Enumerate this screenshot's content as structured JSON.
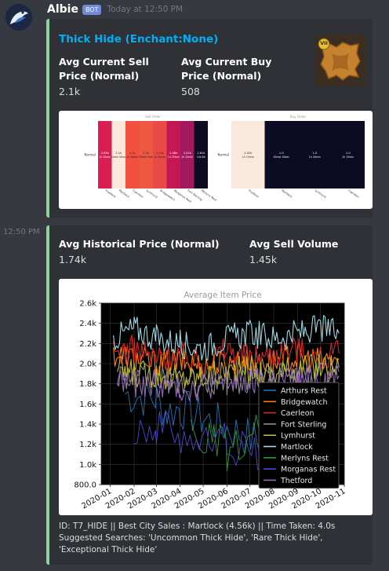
{
  "message": {
    "author": "Albie",
    "bot_badge": "BOT",
    "timestamp": "Today at 12:50 PM",
    "second_timestamp": "12:50 PM"
  },
  "embed1": {
    "title": "Thick Hide (Enchant:None)",
    "field1_name": "Avg Current Sell Price (Normal)",
    "field1_value": "2.1k",
    "field2_name": "Avg Current Buy Price (Normal)",
    "field2_value": "508",
    "thumbnail_icon": "thick-hide-item-icon",
    "thumbnail_badge": "VII",
    "heatmaps": [
      {
        "title": "Sell Order",
        "row_label": "Normal",
        "cells": [
          {
            "text": "2.09k",
            "sub": "1h 25min",
            "city": "Thetford",
            "color": "#d81e53"
          },
          {
            "text": "2.1k",
            "sub": "45min 50sec",
            "city": "Martlock",
            "color": "#fbe8dc"
          },
          {
            "text": "2.1k",
            "sub": "1h 30min",
            "city": "Caerleon",
            "color": "#f1513f"
          },
          {
            "text": "2.1k",
            "sub": "50min 5sec",
            "city": "Lymhurst",
            "color": "#ee5841"
          },
          {
            "text": "2.13k",
            "sub": "1h 55min",
            "city": "Bridgewatch",
            "color": "#ea4a45"
          },
          {
            "text": "2.06k",
            "sub": "1h 25min",
            "city": "Morganas Rest",
            "color": "#c41753"
          },
          {
            "text": "2.02k",
            "sub": "1h 25min",
            "city": "Fort Sterling",
            "color": "#a2195d"
          },
          {
            "text": "1.61k",
            "sub": "14d 8h",
            "city": "Merlyns Rest",
            "color": "#0e0c22"
          }
        ]
      },
      {
        "title": "Buy Order",
        "row_label": "Normal",
        "cells": [
          {
            "text": "2.02k",
            "sub": "1h 15min",
            "city": "Thetford",
            "color": "#fbe8dc"
          },
          {
            "text": "1.0",
            "sub": "45min 50sec",
            "city": "Martlock",
            "color": "#0b0b24"
          },
          {
            "text": "1.0",
            "sub": "1h 40min",
            "city": "Lymhurst",
            "color": "#0b0b24"
          },
          {
            "text": "1.0",
            "sub": "1h 15min",
            "city": "Caerleon",
            "color": "#0b0b24"
          }
        ]
      }
    ]
  },
  "embed2": {
    "field1_name": "Avg Historical Price (Normal)",
    "field1_value": "1.74k",
    "field2_name": "Avg Sell Volume",
    "field2_value": "1.45k",
    "footer_id": "ID: T7_HIDE || Best City Sales : Martlock (4.56k) || Time Taken: 4.0s",
    "footer_suggest": "Suggested Searches: 'Uncommon Thick Hide', 'Rare Thick Hide', 'Exceptional Thick Hide'"
  },
  "chart_data": {
    "type": "line",
    "title": "Average Item Price",
    "xlabel": "",
    "ylabel": "",
    "x_ticks": [
      "2020-01",
      "2020-02",
      "2020-03",
      "2020-04",
      "2020-05",
      "2020-06",
      "2020-07",
      "2020-08",
      "2020-09",
      "2020-10",
      "2020-11"
    ],
    "y_ticks": [
      "800.0",
      "1.0k",
      "1.2k",
      "1.4k",
      "1.6k",
      "1.8k",
      "2.0k",
      "2.2k",
      "2.4k",
      "2.6k"
    ],
    "ylim": [
      800,
      2600
    ],
    "xlim": [
      "2019-12-20",
      "2020-11-01"
    ],
    "grid": true,
    "legend_position": "center-right",
    "series": [
      {
        "name": "Arthurs Rest",
        "color": "#1f77b4",
        "x": [
          "2020-01-20",
          "2020-03-01",
          "2020-03-15",
          "2020-04-01",
          "2020-05-01",
          "2020-05-20",
          "2020-06-05",
          "2020-06-20",
          "2020-07-20",
          "2020-08-15"
        ],
        "y": [
          1700,
          1650,
          1520,
          1560,
          1450,
          1400,
          1350,
          1300,
          1200,
          1100
        ]
      },
      {
        "name": "Bridgewatch",
        "color": "#ff7f0e",
        "x": [
          "2020-01-05",
          "2020-02-01",
          "2020-03-01",
          "2020-04-01",
          "2020-05-01",
          "2020-06-01",
          "2020-07-01",
          "2020-08-01",
          "2020-09-01",
          "2020-10-01",
          "2020-10-25"
        ],
        "y": [
          2100,
          2050,
          2000,
          2020,
          1980,
          2000,
          2050,
          2020,
          2060,
          2030,
          2050
        ]
      },
      {
        "name": "Caerleon",
        "color": "#d62728",
        "x": [
          "2020-01-05",
          "2020-02-01",
          "2020-03-01",
          "2020-04-01",
          "2020-05-01",
          "2020-06-01",
          "2020-07-01",
          "2020-08-01",
          "2020-09-01",
          "2020-10-01",
          "2020-10-25"
        ],
        "y": [
          2100,
          2150,
          2050,
          2100,
          2000,
          2150,
          2050,
          2100,
          2150,
          2050,
          2100
        ]
      },
      {
        "name": "Fort Sterling",
        "color": "#8c8c8c",
        "x": [
          "2020-01-10",
          "2020-02-01",
          "2020-03-01",
          "2020-04-01",
          "2020-05-01",
          "2020-06-01",
          "2020-07-01",
          "2020-08-01",
          "2020-09-01",
          "2020-10-01",
          "2020-10-25"
        ],
        "y": [
          1900,
          1880,
          1850,
          1820,
          1800,
          1830,
          1850,
          1880,
          1870,
          1900,
          1920
        ]
      },
      {
        "name": "Lymhurst",
        "color": "#bcbd22",
        "x": [
          "2020-01-10",
          "2020-02-01",
          "2020-03-01",
          "2020-04-01",
          "2020-05-01",
          "2020-06-01",
          "2020-07-01",
          "2020-08-01",
          "2020-09-01",
          "2020-10-01",
          "2020-10-25"
        ],
        "y": [
          1950,
          1900,
          1900,
          1850,
          1880,
          1920,
          1950,
          1900,
          1950,
          1980,
          1960
        ]
      },
      {
        "name": "Martlock",
        "color": "#9edae5",
        "x": [
          "2020-01-05",
          "2020-02-01",
          "2020-03-01",
          "2020-04-01",
          "2020-05-01",
          "2020-06-01",
          "2020-07-01",
          "2020-08-01",
          "2020-09-01",
          "2020-10-01",
          "2020-10-25"
        ],
        "y": [
          2250,
          2350,
          2250,
          2200,
          2150,
          2250,
          2300,
          2250,
          2300,
          2350,
          2300
        ]
      },
      {
        "name": "Merlyns Rest",
        "color": "#2ca02c",
        "x": [
          "2020-04-15",
          "2020-05-15",
          "2020-06-01",
          "2020-06-20",
          "2020-07-01",
          "2020-07-20"
        ],
        "y": [
          1300,
          1200,
          1150,
          1100,
          1250,
          1400
        ]
      },
      {
        "name": "Morganas Rest",
        "color": "#4a4ad0",
        "x": [
          "2020-02-01",
          "2020-03-01",
          "2020-04-10",
          "2020-05-01",
          "2020-06-01",
          "2020-06-25",
          "2020-07-15",
          "2020-08-01"
        ],
        "y": [
          1400,
          1350,
          1300,
          1200,
          1250,
          1150,
          1100,
          1000
        ]
      },
      {
        "name": "Thetford",
        "color": "#9467bd",
        "x": [
          "2020-01-10",
          "2020-02-01",
          "2020-03-01",
          "2020-04-01",
          "2020-05-01",
          "2020-06-01",
          "2020-07-01",
          "2020-08-01",
          "2020-09-01",
          "2020-10-01",
          "2020-10-25"
        ],
        "y": [
          1850,
          1800,
          1800,
          1750,
          1780,
          1820,
          1800,
          1850,
          1830,
          1860,
          1880
        ]
      }
    ]
  }
}
